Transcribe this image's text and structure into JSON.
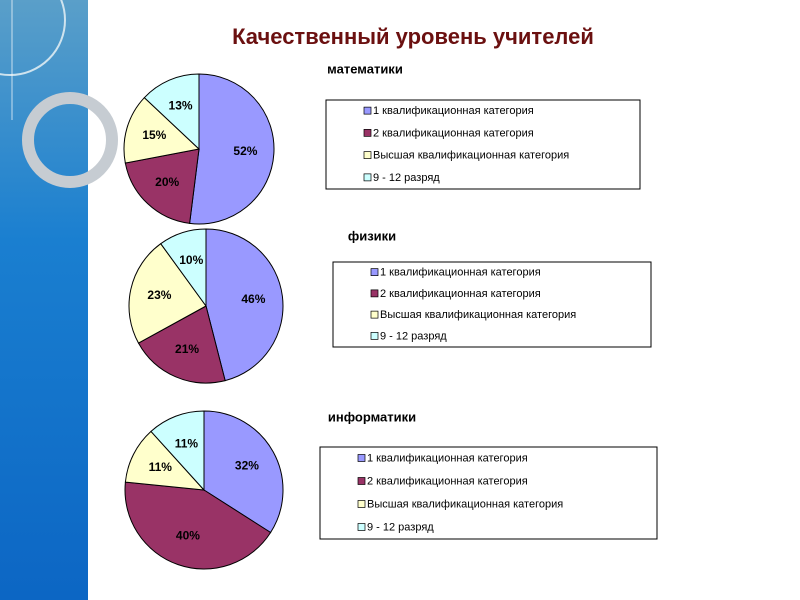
{
  "title": "Качественный уровень учителей",
  "chart_data": [
    {
      "type": "pie",
      "title": "математики",
      "categories": [
        "1 квалификационная категория",
        "2 квалификационная категория",
        "Высшая квалификационная категория",
        "9 - 12 разряд"
      ],
      "values": [
        52,
        20,
        15,
        13
      ],
      "value_labels": [
        "52%",
        "20%",
        "15%",
        "13%"
      ],
      "colors": [
        "#9999ff",
        "#993366",
        "#ffffcc",
        "#ccffff"
      ]
    },
    {
      "type": "pie",
      "title": "физики",
      "categories": [
        "1 квалификационная категория",
        "2 квалификационная категория",
        "Высшая квалификационная категория",
        "9 - 12 разряд"
      ],
      "values": [
        46,
        21,
        23,
        10
      ],
      "value_labels": [
        "46%",
        "21%",
        "23%",
        "10%"
      ],
      "colors": [
        "#9999ff",
        "#993366",
        "#ffffcc",
        "#ccffff"
      ]
    },
    {
      "type": "pie",
      "title": "информатики",
      "categories": [
        "1 квалификационная категория",
        "2 квалификационная категория",
        "Высшая квалификационная категория",
        "9 - 12 разряд"
      ],
      "values": [
        32,
        40,
        11,
        11
      ],
      "value_labels": [
        "32%",
        "40%",
        "11%",
        "11%"
      ],
      "colors": [
        "#9999ff",
        "#993366",
        "#ffffcc",
        "#ccffff"
      ]
    }
  ]
}
